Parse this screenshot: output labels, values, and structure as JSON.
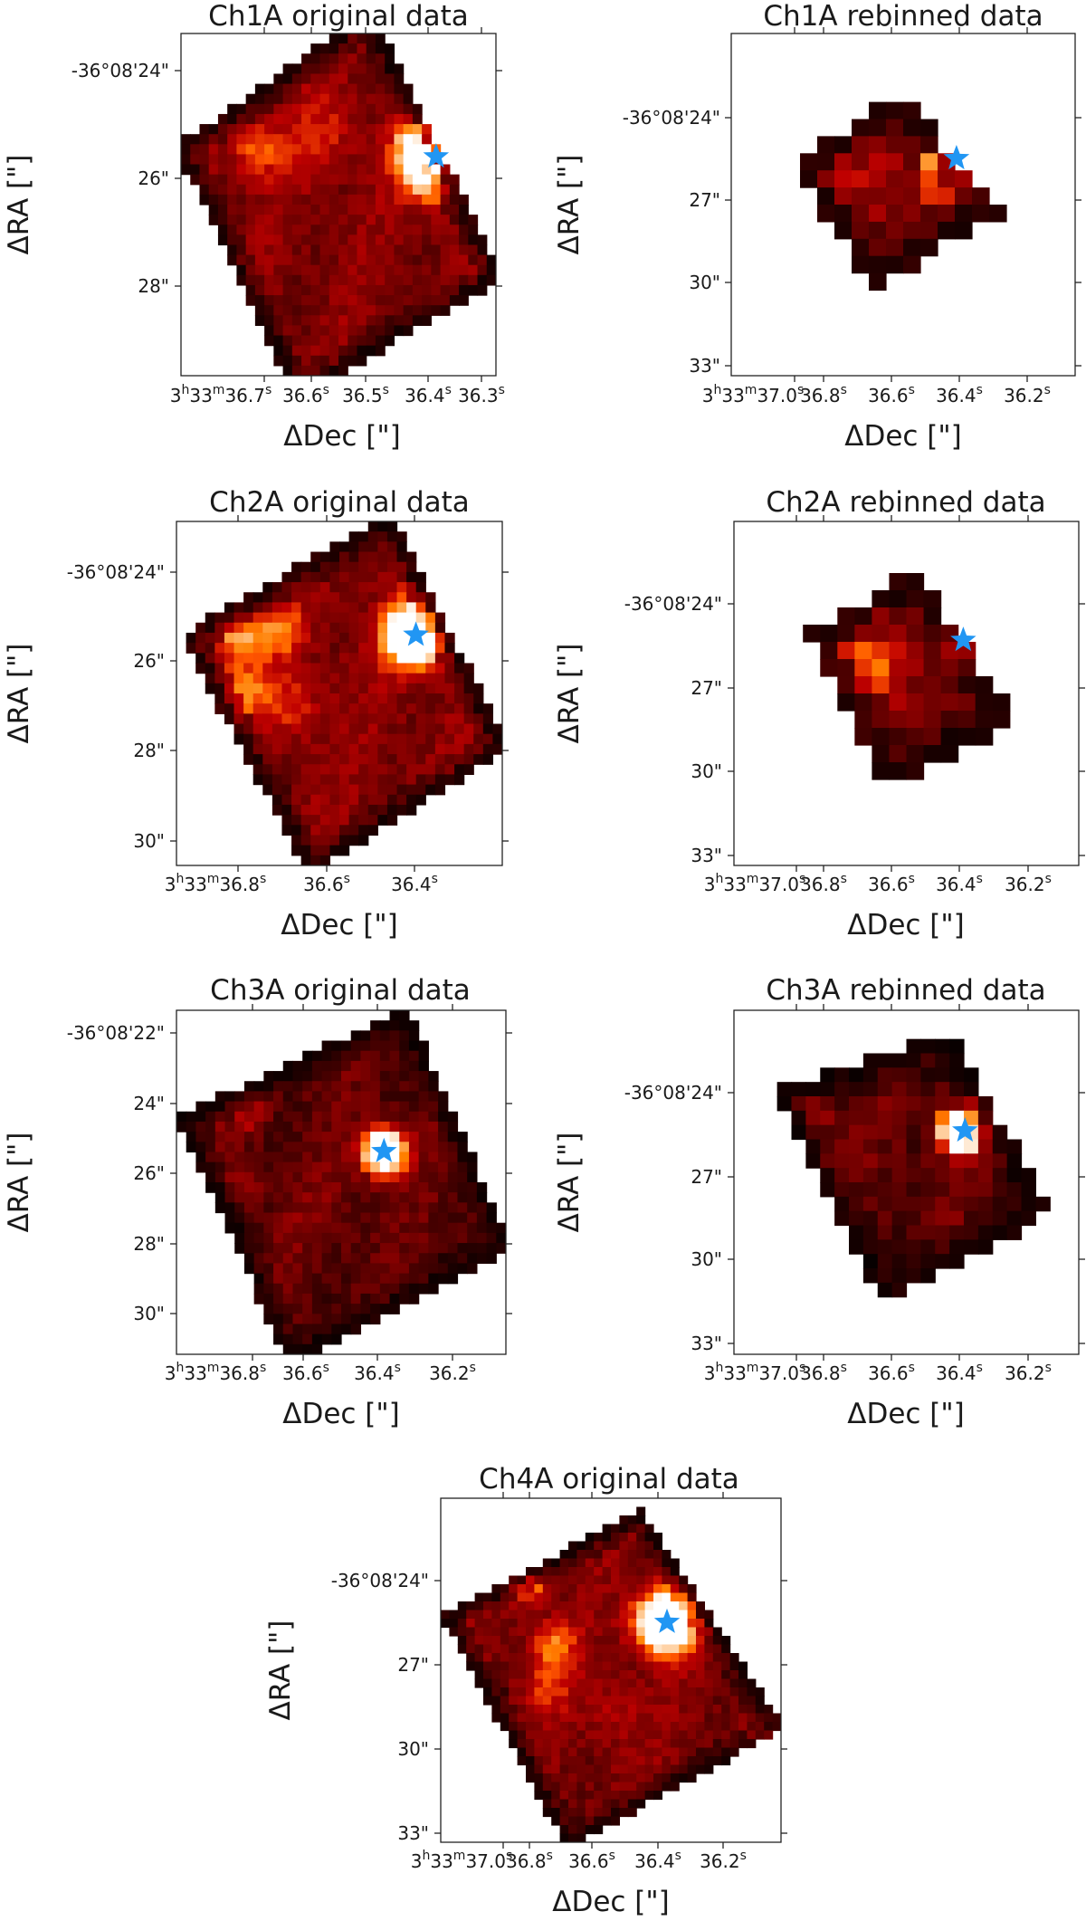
{
  "chart_data": [
    {
      "type": "heatmap",
      "title": "Ch1A original data",
      "xlabel": "ΔDec [\"]",
      "ylabel": "ΔRA [\"]",
      "x_tick_labels": [
        "3h33m36.7s",
        "36.6s",
        "36.5s",
        "36.4s",
        "36.3s"
      ],
      "y_tick_labels": [
        "-36°08'24\"",
        "26\"",
        "28\""
      ],
      "grid": false,
      "colormap": "gist_heat",
      "grid_resolution": 34,
      "footprint_corners": [
        [
          0.6,
          -0.07
        ],
        [
          1.03,
          0.72
        ],
        [
          0.36,
          1.07
        ],
        [
          -0.02,
          0.33
        ]
      ],
      "hotspots": [
        {
          "x": 0.8,
          "y": 0.37,
          "sigma": 0.07,
          "amp": 1.4
        },
        {
          "x": 0.78,
          "y": 0.29,
          "sigma": 0.05,
          "amp": 0.7
        },
        {
          "x": 0.24,
          "y": 0.34,
          "sigma": 0.06,
          "amp": 0.35
        },
        {
          "x": 0.45,
          "y": 0.3,
          "sigma": 0.09,
          "amp": 0.2
        }
      ],
      "base_level": 0.33,
      "marker": {
        "shape": "star",
        "color": "#2196F3",
        "x": 0.81,
        "y": 0.36
      },
      "seed": 11
    },
    {
      "type": "heatmap",
      "title": "Ch1A rebinned data",
      "xlabel": "ΔDec [\"]",
      "ylabel": "ΔRA [\"]",
      "x_tick_labels": [
        "3h33m37.0s",
        "36.8s",
        "36.6s",
        "36.4s",
        "36.2s"
      ],
      "y_tick_labels": [
        "-36°08'24\"",
        "27\"",
        "30\"",
        "33\""
      ],
      "grid": false,
      "colormap": "gist_heat",
      "grid_resolution": 20,
      "footprint_corners": [
        [
          0.5,
          0.17
        ],
        [
          0.78,
          0.53
        ],
        [
          0.42,
          0.75
        ],
        [
          0.17,
          0.38
        ]
      ],
      "hotspots": [
        {
          "x": 0.64,
          "y": 0.4,
          "sigma": 0.05,
          "amp": 1.5
        },
        {
          "x": 0.62,
          "y": 0.35,
          "sigma": 0.04,
          "amp": 0.7
        },
        {
          "x": 0.32,
          "y": 0.4,
          "sigma": 0.06,
          "amp": 0.3
        }
      ],
      "base_level": 0.36,
      "marker": {
        "shape": "star",
        "color": "#2196F3",
        "x": 0.655,
        "y": 0.365
      },
      "seed": 23
    },
    {
      "type": "heatmap",
      "title": "Ch2A original data",
      "xlabel": "ΔDec [\"]",
      "ylabel": "ΔRA [\"]",
      "x_tick_labels": [
        "3h33m36.8s",
        "36.6s",
        "36.4s"
      ],
      "y_tick_labels": [
        "-36°08'24\"",
        "26\"",
        "28\"",
        "30\""
      ],
      "grid": false,
      "colormap": "gist_heat",
      "grid_resolution": 34,
      "footprint_corners": [
        [
          0.66,
          -0.03
        ],
        [
          1.02,
          0.66
        ],
        [
          0.41,
          1.03
        ],
        [
          0.01,
          0.33
        ]
      ],
      "hotspots": [
        {
          "x": 0.73,
          "y": 0.33,
          "sigma": 0.06,
          "amp": 1.5
        },
        {
          "x": 0.19,
          "y": 0.33,
          "sigma": 0.05,
          "amp": 0.5
        },
        {
          "x": 0.32,
          "y": 0.32,
          "sigma": 0.05,
          "amp": 0.4
        },
        {
          "x": 0.2,
          "y": 0.49,
          "sigma": 0.06,
          "amp": 0.4
        },
        {
          "x": 0.36,
          "y": 0.54,
          "sigma": 0.06,
          "amp": 0.25
        }
      ],
      "base_level": 0.35,
      "marker": {
        "shape": "star",
        "color": "#2196F3",
        "x": 0.735,
        "y": 0.33
      },
      "seed": 37
    },
    {
      "type": "heatmap",
      "title": "Ch2A rebinned data",
      "xlabel": "ΔDec [\"]",
      "ylabel": "ΔRA [\"]",
      "x_tick_labels": [
        "3h33m37.0s",
        "36.8s",
        "36.6s",
        "36.4s",
        "36.2s"
      ],
      "y_tick_labels": [
        "-36°08'24\"",
        "27\"",
        "30\"",
        "33\""
      ],
      "grid": false,
      "colormap": "gist_heat",
      "grid_resolution": 20,
      "footprint_corners": [
        [
          0.52,
          0.14
        ],
        [
          0.82,
          0.59
        ],
        [
          0.44,
          0.78
        ],
        [
          0.21,
          0.33
        ]
      ],
      "hotspots": [
        {
          "x": 0.66,
          "y": 0.35,
          "sigma": 0.045,
          "amp": 1.4
        },
        {
          "x": 0.33,
          "y": 0.38,
          "sigma": 0.06,
          "amp": 0.35
        },
        {
          "x": 0.4,
          "y": 0.45,
          "sigma": 0.06,
          "amp": 0.25
        }
      ],
      "base_level": 0.36,
      "marker": {
        "shape": "star",
        "color": "#2196F3",
        "x": 0.665,
        "y": 0.345
      },
      "seed": 41
    },
    {
      "type": "heatmap",
      "title": "Ch3A original data",
      "xlabel": "ΔDec [\"]",
      "ylabel": "ΔRA [\"]",
      "x_tick_labels": [
        "3h33m36.8s",
        "36.6s",
        "36.4s",
        "36.2s"
      ],
      "y_tick_labels": [
        "-36°08'22\"",
        "24\"",
        "26\"",
        "28\"",
        "30\""
      ],
      "grid": false,
      "colormap": "gist_heat",
      "grid_resolution": 34,
      "footprint_corners": [
        [
          0.7,
          -0.01
        ],
        [
          1.02,
          0.69
        ],
        [
          0.34,
          1.03
        ],
        [
          0.0,
          0.31
        ]
      ],
      "hotspots": [
        {
          "x": 0.63,
          "y": 0.41,
          "sigma": 0.045,
          "amp": 1.5
        },
        {
          "x": 0.22,
          "y": 0.31,
          "sigma": 0.04,
          "amp": 0.2
        },
        {
          "x": 0.21,
          "y": 0.52,
          "sigma": 0.035,
          "amp": 0.2
        },
        {
          "x": 0.45,
          "y": 0.6,
          "sigma": 0.08,
          "amp": 0.08
        }
      ],
      "base_level": 0.24,
      "marker": {
        "shape": "star",
        "color": "#2196F3",
        "x": 0.63,
        "y": 0.41
      },
      "seed": 53
    },
    {
      "type": "heatmap",
      "title": "Ch3A rebinned data",
      "xlabel": "ΔDec [\"]",
      "ylabel": "ΔRA [\"]",
      "x_tick_labels": [
        "3h33m37.0s",
        "36.8s",
        "36.6s",
        "36.4s",
        "36.2s"
      ],
      "y_tick_labels": [
        "-36°08'24\"",
        "27\"",
        "30\"",
        "33\""
      ],
      "grid": false,
      "colormap": "gist_heat",
      "grid_resolution": 24,
      "footprint_corners": [
        [
          0.63,
          0.06
        ],
        [
          0.92,
          0.59
        ],
        [
          0.42,
          0.85
        ],
        [
          0.11,
          0.24
        ]
      ],
      "hotspots": [
        {
          "x": 0.66,
          "y": 0.35,
          "sigma": 0.045,
          "amp": 1.5
        },
        {
          "x": 0.25,
          "y": 0.29,
          "sigma": 0.04,
          "amp": 0.25
        },
        {
          "x": 0.3,
          "y": 0.45,
          "sigma": 0.035,
          "amp": 0.2
        }
      ],
      "base_level": 0.24,
      "marker": {
        "shape": "star",
        "color": "#2196F3",
        "x": 0.67,
        "y": 0.35
      },
      "seed": 67
    },
    {
      "type": "heatmap",
      "title": "Ch4A original data",
      "xlabel": "ΔDec [\"]",
      "ylabel": "ΔRA [\"]",
      "x_tick_labels": [
        "3h33m37.0s",
        "36.8s",
        "36.6s",
        "36.4s",
        "36.2s"
      ],
      "y_tick_labels": [
        "-36°08'24\"",
        "27\"",
        "30\"",
        "33\""
      ],
      "grid": false,
      "colormap": "gist_heat",
      "grid_resolution": 40,
      "footprint_corners": [
        [
          0.59,
          0.03
        ],
        [
          1.01,
          0.67
        ],
        [
          0.37,
          1.02
        ],
        [
          0.0,
          0.34
        ]
      ],
      "hotspots": [
        {
          "x": 0.66,
          "y": 0.36,
          "sigma": 0.06,
          "amp": 1.4
        },
        {
          "x": 0.73,
          "y": 0.28,
          "sigma": 0.04,
          "amp": 0.4
        },
        {
          "x": 0.26,
          "y": 0.25,
          "sigma": 0.04,
          "amp": 0.5
        },
        {
          "x": 0.33,
          "y": 0.43,
          "sigma": 0.05,
          "amp": 0.4
        },
        {
          "x": 0.31,
          "y": 0.55,
          "sigma": 0.05,
          "amp": 0.25
        },
        {
          "x": 0.5,
          "y": 0.62,
          "sigma": 0.07,
          "amp": 0.15
        },
        {
          "x": 0.97,
          "y": 0.69,
          "sigma": 0.03,
          "amp": 0.45
        }
      ],
      "base_level": 0.32,
      "marker": {
        "shape": "star",
        "color": "#2196F3",
        "x": 0.665,
        "y": 0.36
      },
      "seed": 79
    }
  ]
}
